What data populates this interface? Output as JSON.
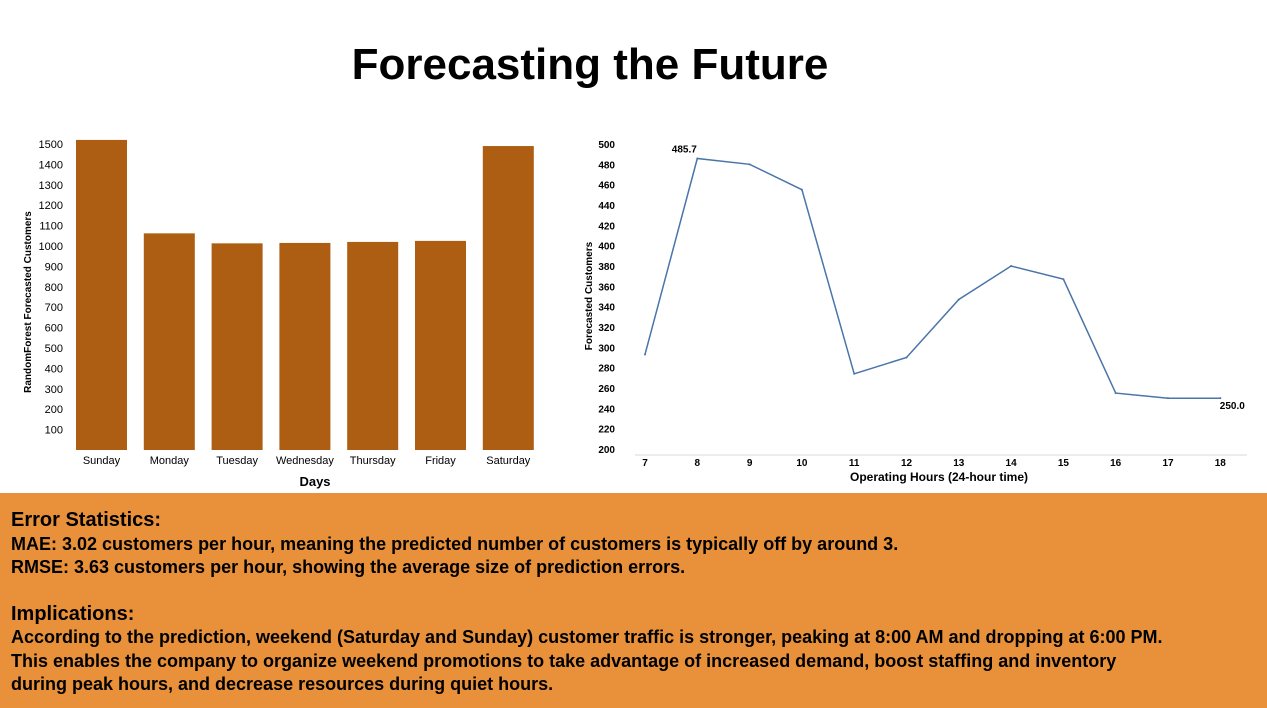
{
  "title": "Forecasting the Future",
  "colors": {
    "bar": "#ae5e12",
    "line": "#4a75a8",
    "panel": "#e8913a"
  },
  "chart_data": [
    {
      "type": "bar",
      "categories": [
        "Sunday",
        "Monday",
        "Tuesday",
        "Wednesday",
        "Thursday",
        "Friday",
        "Saturday"
      ],
      "values": [
        1520,
        1062,
        1013,
        1015,
        1020,
        1025,
        1490
      ],
      "xlabel": "Days",
      "ylabel": "RandomForest Forecasted Customers",
      "yticks": [
        100,
        200,
        300,
        400,
        500,
        600,
        700,
        800,
        900,
        1000,
        1100,
        1200,
        1300,
        1400,
        1500
      ],
      "ylim": [
        0,
        1500
      ],
      "grid": false
    },
    {
      "type": "line",
      "x": [
        7,
        8,
        9,
        10,
        11,
        12,
        13,
        14,
        15,
        16,
        17,
        18
      ],
      "y": [
        293,
        485.7,
        480,
        455,
        274,
        290,
        347,
        380,
        367,
        255,
        250,
        250.0
      ],
      "xlabel": "Operating Hours (24-hour time)",
      "ylabel": "Forecasted Customers",
      "yticks": [
        200,
        220,
        240,
        260,
        280,
        300,
        320,
        340,
        360,
        380,
        400,
        420,
        440,
        460,
        480,
        500
      ],
      "ylim": [
        200,
        500
      ],
      "annotations": [
        {
          "x": 8,
          "y": 485.7,
          "text": "485.7"
        },
        {
          "x": 18,
          "y": 250.0,
          "text": "250.0"
        }
      ],
      "grid": false
    }
  ],
  "info": {
    "error_heading": "Error Statistics:",
    "mae": "MAE: 3.02 customers per hour, meaning the predicted number of customers is typically off by around 3.",
    "rmse": "RMSE: 3.63 customers per hour, showing the average size of prediction errors.",
    "implications_heading": "Implications:",
    "implications_1": "According to the prediction, weekend (Saturday and Sunday) customer traffic is stronger, peaking at 8:00 AM and dropping at 6:00 PM.",
    "implications_2": "This enables the company to organize weekend promotions to take advantage of increased demand, boost staffing and inventory",
    "implications_3": "during peak hours, and decrease resources during quiet hours."
  }
}
